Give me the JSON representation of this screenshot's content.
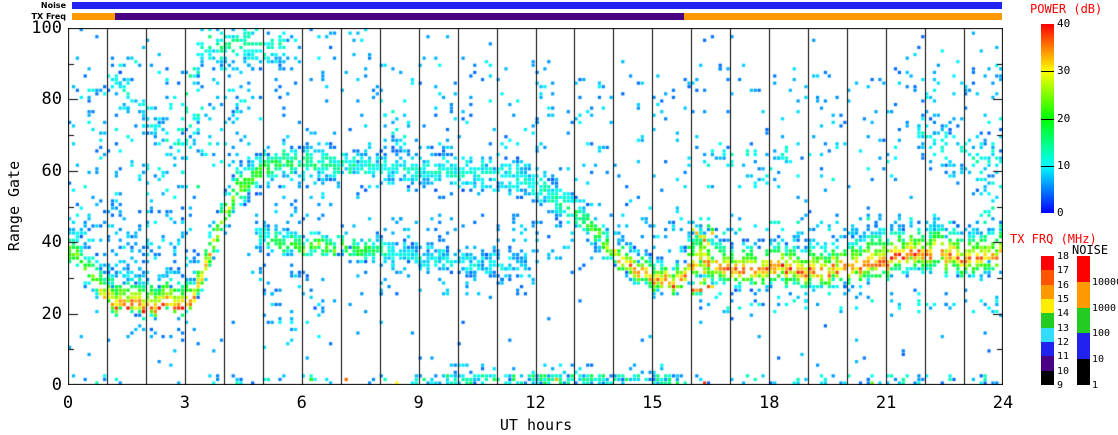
{
  "top_bars": {
    "noise_label": "Noise",
    "txfreq_label": "TX Freq",
    "noise_segments": [
      {
        "t0": 0,
        "t1": 24,
        "color": "#2222ee",
        "level": "10-100"
      }
    ],
    "txfreq_segments": [
      {
        "t0": 0,
        "t1": 1.1,
        "color": "#ff9900",
        "mhz": "15-16"
      },
      {
        "t0": 1.1,
        "t1": 15.8,
        "color": "#4a0082",
        "mhz": "10-11"
      },
      {
        "t0": 15.8,
        "t1": 24,
        "color": "#ff9900",
        "mhz": "15-16"
      }
    ]
  },
  "colorbars": {
    "power": {
      "title": "POWER (dB)",
      "title_color": "#ff0000",
      "min": 0,
      "max": 40,
      "tick_labels": [
        "40",
        "30",
        "20",
        "10",
        "0"
      ],
      "gradient_bottom_to_top": [
        "#0000ff",
        "#00ffff",
        "#00ff00",
        "#ffff00",
        "#ff0000"
      ]
    },
    "txfreq": {
      "title": "TX FRQ (MHz)",
      "title_color": "#ff0000",
      "tick_labels": [
        "18",
        "17",
        "16",
        "15",
        "14",
        "13",
        "12",
        "11",
        "10",
        "9"
      ],
      "segment_colors_top_down": [
        "#ff0000",
        "#ff5500",
        "#ff9900",
        "#ffee00",
        "#22cc22",
        "#33ddff",
        "#2222ee",
        "#4a0082",
        "#000000"
      ]
    },
    "noise": {
      "title": "NOISE",
      "title_color": "#000000",
      "tick_labels": [
        "10000",
        "1000",
        "100",
        "10",
        "1"
      ],
      "segment_colors_top_down": [
        "#ff0000",
        "#ff9900",
        "#22cc22",
        "#2222ee",
        "#000000"
      ]
    }
  },
  "chart_data": {
    "type": "heatmap",
    "title": "",
    "xlabel": "UT hours",
    "ylabel": "Range Gate",
    "xlim": [
      0,
      24
    ],
    "ylim": [
      0,
      100
    ],
    "x_ticks": [
      0,
      3,
      6,
      9,
      12,
      15,
      18,
      21,
      24
    ],
    "x_minor_step": 1,
    "y_ticks": [
      0,
      20,
      40,
      60,
      80,
      100
    ],
    "y_minor_step": 10,
    "hour_gridlines": [
      1,
      2,
      3,
      4,
      5,
      6,
      7,
      8,
      9,
      10,
      11,
      12,
      13,
      14,
      15,
      16,
      17,
      18,
      19,
      20,
      21,
      22,
      23
    ],
    "power_range_db": [
      0,
      40
    ],
    "time_steps": 240,
    "gates": 100,
    "seed": 11,
    "bands": [
      {
        "name": "main-scatter-band",
        "t": [
          0.0,
          0.4,
          0.9,
          1.2,
          2.0,
          2.9,
          3.2,
          3.6,
          4.0,
          4.4,
          5.0,
          5.6,
          7.0,
          8.0,
          9.5,
          11.0,
          12.0,
          12.8,
          13.6,
          14.3,
          15.0,
          15.7,
          16.1,
          16.6,
          17.2,
          17.8,
          18.4,
          19.2,
          20.0,
          20.8,
          21.6,
          22.4,
          23.2,
          24.0
        ],
        "g": [
          36,
          34,
          25,
          21.5,
          21,
          21.5,
          23,
          34,
          47,
          55,
          60,
          62,
          61,
          60,
          60,
          58,
          56,
          50,
          42,
          33,
          29,
          28,
          34,
          32,
          31,
          31,
          32,
          31,
          32,
          33,
          36,
          36,
          34,
          36
        ],
        "p": [
          27,
          22,
          32,
          38,
          39,
          38,
          37,
          34,
          28,
          26,
          22,
          18,
          14,
          12,
          12,
          12,
          13,
          15,
          24,
          36,
          38,
          38,
          36,
          37,
          38,
          38,
          38,
          38,
          37,
          38,
          39,
          38,
          38,
          36
        ],
        "up": [
          6,
          6,
          8,
          9,
          9,
          9,
          8,
          7,
          6,
          6,
          5,
          5,
          5,
          5,
          5,
          5,
          5,
          5,
          5,
          6,
          6,
          6,
          10,
          8,
          8,
          8,
          8,
          8,
          8,
          10,
          8,
          8,
          8,
          8
        ],
        "dn": [
          5,
          5,
          3,
          2.5,
          2.5,
          2.5,
          3,
          4,
          5,
          5,
          5,
          5,
          5,
          5,
          5,
          5,
          5,
          5,
          4,
          3.5,
          3.5,
          3.5,
          5,
          5,
          5,
          5,
          5,
          5,
          5,
          5,
          5,
          5,
          5,
          5
        ],
        "den": 0.84
      },
      {
        "name": "secondary-low-band",
        "t": [
          4.8,
          5.3,
          6.0,
          7.0,
          7.6,
          8.2,
          9.0,
          10.0,
          11.0,
          11.8
        ],
        "g": [
          42,
          39,
          38,
          38,
          37,
          36,
          35,
          34,
          33,
          33
        ],
        "p": [
          10,
          20,
          25,
          24,
          22,
          14,
          11,
          11,
          10,
          10
        ],
        "up": 4,
        "dn": 3,
        "den": 0.78
      },
      {
        "name": "top-edge-cluster",
        "t": [
          3.3,
          3.7,
          4.1,
          4.6,
          5.1,
          5.6
        ],
        "g": [
          93,
          96,
          95,
          96,
          94,
          95
        ],
        "p": [
          13,
          16,
          15,
          16,
          14,
          12
        ],
        "up": 6,
        "dn": 7,
        "den": 0.5
      },
      {
        "name": "early-descending-streak",
        "t": [
          1.1,
          1.6,
          2.2,
          2.8,
          3.2
        ],
        "g": [
          86,
          80,
          73,
          67,
          64
        ],
        "p": [
          10,
          12,
          11,
          13,
          14
        ],
        "up": 5,
        "dn": 5,
        "den": 0.35
      },
      {
        "name": "morning-descender-1",
        "t": [
          4.6,
          5.2,
          5.8
        ],
        "g": [
          36,
          26,
          18
        ],
        "p": [
          8,
          8,
          8
        ],
        "up": 3,
        "dn": 3,
        "den": 0.3
      },
      {
        "name": "morning-descender-2",
        "t": [
          5.5,
          6.1,
          6.7
        ],
        "g": [
          34,
          27,
          21
        ],
        "p": [
          8,
          8,
          8
        ],
        "up": 3,
        "dn": 3,
        "den": 0.25
      },
      {
        "name": "late-upper-cluster",
        "t": [
          21.8,
          22.4,
          23.0,
          23.6,
          24.0
        ],
        "g": [
          70,
          66,
          63,
          62,
          64
        ],
        "p": [
          10,
          12,
          13,
          12,
          11
        ],
        "up": 7,
        "dn": 7,
        "den": 0.4
      }
    ],
    "patches": [
      {
        "t0": 0,
        "t1": 0.9,
        "g0": 40,
        "g1": 55,
        "den": 0.16,
        "p0": 4,
        "p1": 12
      },
      {
        "t0": 0,
        "t1": 0.9,
        "g0": 55,
        "g1": 90,
        "den": 0.07,
        "p0": 4,
        "p1": 12
      },
      {
        "t0": 0.9,
        "t1": 3.3,
        "g0": 27,
        "g1": 50,
        "den": 0.2,
        "p0": 4,
        "p1": 10
      },
      {
        "t0": 0.9,
        "t1": 3.3,
        "g0": 50,
        "g1": 92,
        "den": 0.08,
        "p0": 4,
        "p1": 12
      },
      {
        "t0": 2.9,
        "t1": 3.4,
        "g0": 55,
        "g1": 90,
        "den": 0.22,
        "p0": 5,
        "p1": 16
      },
      {
        "t0": 3.3,
        "t1": 4.8,
        "g0": 60,
        "g1": 92,
        "den": 0.11,
        "p0": 4,
        "p1": 12
      },
      {
        "t0": 4.8,
        "t1": 8.0,
        "g0": 64,
        "g1": 100,
        "den": 0.05,
        "p0": 4,
        "p1": 10
      },
      {
        "t0": 4.8,
        "t1": 7.8,
        "g0": 44,
        "g1": 56,
        "den": 0.09,
        "p0": 4,
        "p1": 10
      },
      {
        "t0": 5.0,
        "t1": 7.0,
        "g0": 8,
        "g1": 20,
        "den": 0.07,
        "p0": 4,
        "p1": 10
      },
      {
        "t0": 8.0,
        "t1": 12.0,
        "g0": 25,
        "g1": 48,
        "den": 0.11,
        "p0": 4,
        "p1": 9
      },
      {
        "t0": 8.0,
        "t1": 12.5,
        "g0": 66,
        "g1": 92,
        "den": 0.06,
        "p0": 4,
        "p1": 11
      },
      {
        "t0": 8.1,
        "t1": 8.8,
        "g0": 67,
        "g1": 77,
        "den": 0.18,
        "p0": 6,
        "p1": 13
      },
      {
        "t0": 12.0,
        "t1": 16.0,
        "g0": 55,
        "g1": 88,
        "den": 0.06,
        "p0": 4,
        "p1": 10
      },
      {
        "t0": 12.0,
        "t1": 14.5,
        "g0": 35,
        "g1": 52,
        "den": 0.11,
        "p0": 4,
        "p1": 10
      },
      {
        "t0": 14.5,
        "t1": 16.0,
        "g0": 33,
        "g1": 50,
        "den": 0.09,
        "p0": 4,
        "p1": 10
      },
      {
        "t0": 16.0,
        "t1": 21.5,
        "g0": 55,
        "g1": 68,
        "den": 0.07,
        "p0": 4,
        "p1": 12
      },
      {
        "t0": 16.1,
        "t1": 18.6,
        "g0": 57,
        "g1": 66,
        "den": 0.13,
        "p0": 5,
        "p1": 13
      },
      {
        "t0": 18.6,
        "t1": 21.5,
        "g0": 40,
        "g1": 50,
        "den": 0.09,
        "p0": 4,
        "p1": 9
      },
      {
        "t0": 21.5,
        "t1": 24,
        "g0": 72,
        "g1": 95,
        "den": 0.07,
        "p0": 4,
        "p1": 11
      },
      {
        "t0": 16.0,
        "t1": 24,
        "g0": 68,
        "g1": 90,
        "den": 0.035,
        "p0": 4,
        "p1": 9
      },
      {
        "t0": 0,
        "t1": 24,
        "g0": 4,
        "g1": 100,
        "den": 0.012,
        "p0": 4,
        "p1": 8
      },
      {
        "t0": 1.0,
        "t1": 3.3,
        "g0": 12,
        "g1": 19,
        "den": 0.05,
        "p0": 4,
        "p1": 8
      },
      {
        "t0": 16.0,
        "t1": 16.6,
        "g0": 25,
        "g1": 46,
        "den": 0.4,
        "p0": 12,
        "p1": 38
      },
      {
        "t0": 23.3,
        "t1": 24,
        "g0": 45,
        "g1": 58,
        "den": 0.14,
        "p0": 8,
        "p1": 14
      },
      {
        "t0": 16.2,
        "t1": 24,
        "g0": 42,
        "g1": 48,
        "den": 0.12,
        "p0": 6,
        "p1": 14
      },
      {
        "t0": 16.2,
        "t1": 24,
        "g0": 20,
        "g1": 26,
        "den": 0.12,
        "p0": 5,
        "p1": 12
      },
      {
        "t0": 0,
        "t1": 8,
        "g0": 0,
        "g1": 2.5,
        "den": 0.1,
        "p0": 4,
        "p1": 14
      },
      {
        "t0": 8,
        "t1": 9.7,
        "g0": 0,
        "g1": 2.5,
        "den": 0.3,
        "p0": 4,
        "p1": 16
      },
      {
        "t0": 9.7,
        "t1": 15.7,
        "g0": 0,
        "g1": 2.8,
        "den": 0.7,
        "p0": 4,
        "p1": 18
      },
      {
        "t0": 9.7,
        "t1": 15.7,
        "g0": 2.8,
        "g1": 6,
        "den": 0.12,
        "p0": 4,
        "p1": 10
      },
      {
        "t0": 15.7,
        "t1": 24,
        "g0": 0,
        "g1": 2.5,
        "den": 0.2,
        "p0": 4,
        "p1": 14
      }
    ],
    "marks": [
      {
        "t": 7.05,
        "g": 1,
        "p": 36
      },
      {
        "t": 8.35,
        "g": 0,
        "p": 30
      },
      {
        "t": 12.5,
        "g": 1,
        "p": 33
      },
      {
        "t": 16.25,
        "g": 0,
        "p": 38
      },
      {
        "t": 6.2,
        "g": 1,
        "p": 22
      },
      {
        "t": 20.6,
        "g": 0,
        "p": 24
      }
    ]
  }
}
